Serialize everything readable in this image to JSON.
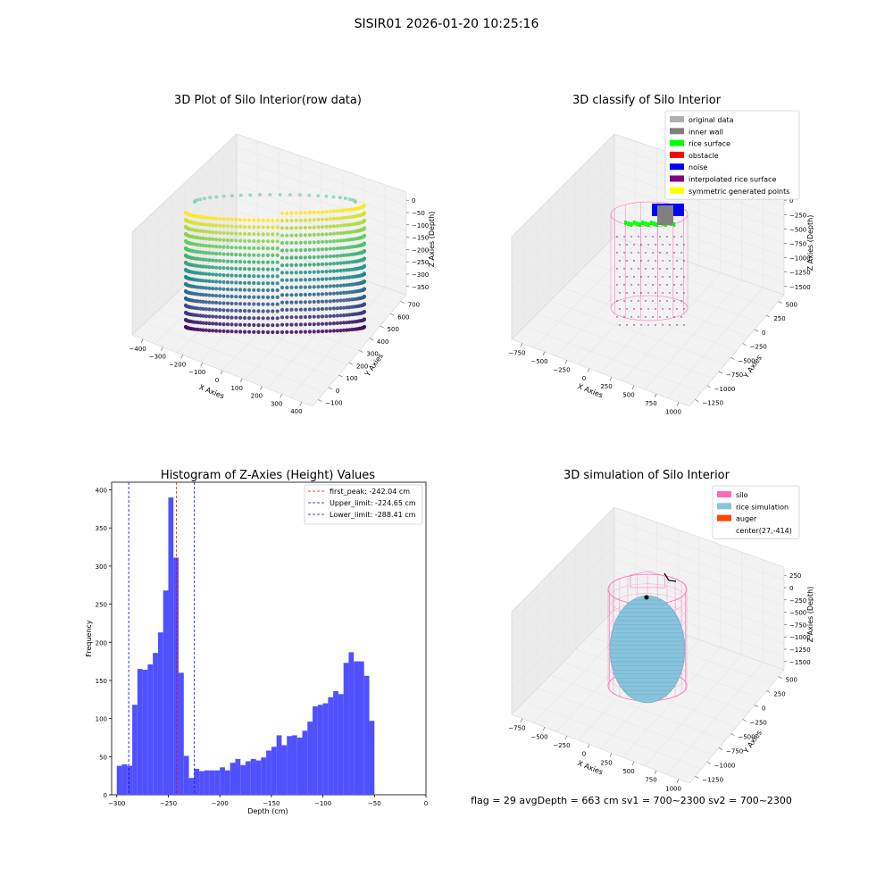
{
  "suptitle": "SISIR01 2026-01-20 10:25:16",
  "footer": "flag = 29  avgDepth = 663 cm  sv1 = 700~2300  sv2 = 700~2300",
  "colors": {
    "hist_bar": "#5050ff",
    "first_peak_line": "#ff0000",
    "limit_line": "#0000ff",
    "silo_pink": "#ff69b4",
    "rice_blue": "#87c4dc",
    "auger_orange": "#ff4500",
    "inner_wall_gray": "#808080",
    "original_gray": "#b0b0b0"
  },
  "chart_data": [
    {
      "type": "scatter3d",
      "title": "3D Plot of Silo Interior(row data)",
      "xlabel": "X Axies",
      "ylabel": "Y Axies",
      "zlabel": "Z Axies (Depth)",
      "xticks": [
        "−400",
        "−300",
        "−200",
        "−100",
        "0",
        "100",
        "200",
        "300",
        "400"
      ],
      "yticks": [
        "−100",
        "0",
        "100",
        "200",
        "300",
        "400",
        "500",
        "600",
        "700"
      ],
      "zticks": [
        "0",
        "−50",
        "−100",
        "−150",
        "−200",
        "−250",
        "−300",
        "−350"
      ],
      "colormap": "viridis"
    },
    {
      "type": "scatter3d",
      "title": "3D classify of Silo Interior",
      "xlabel": "X Axies",
      "ylabel": "Y Axies",
      "zlabel": "Z Axies (Depth)",
      "xticks": [
        "−750",
        "−500",
        "−250",
        "0",
        "250",
        "500",
        "750",
        "1000"
      ],
      "yticks": [
        "−1250",
        "−1000",
        "−750",
        "−500",
        "−250",
        "0",
        "250",
        "500"
      ],
      "zticks": [
        "0",
        "−250",
        "−500",
        "−750",
        "−1000",
        "−1250",
        "−1500"
      ],
      "legend": [
        {
          "label": "original data",
          "color": "#b0b0b0"
        },
        {
          "label": "inner wall",
          "color": "#808080"
        },
        {
          "label": "rice surface",
          "color": "#00ff00"
        },
        {
          "label": "obstacle",
          "color": "#ff0000"
        },
        {
          "label": "noise",
          "color": "#0000ff"
        },
        {
          "label": "interpolated rice surface",
          "color": "#800080"
        },
        {
          "label": "symmetric generated points",
          "color": "#ffff00"
        }
      ]
    },
    {
      "type": "bar",
      "title": "Histogram of Z-Axies (Height) Values",
      "xlabel": "Depth (cm)",
      "ylabel": "Frequency",
      "xlim": [
        -305,
        0
      ],
      "ylim": [
        0,
        410
      ],
      "xticks": [
        "−300",
        "−250",
        "−200",
        "−150",
        "−100",
        "−50",
        "0"
      ],
      "yticks": [
        "0",
        "50",
        "100",
        "150",
        "200",
        "250",
        "300",
        "350",
        "400"
      ],
      "bin_start": -300,
      "bin_width": 5,
      "values": [
        38,
        40,
        38,
        118,
        165,
        164,
        171,
        186,
        213,
        268,
        390,
        311,
        160,
        51,
        22,
        34,
        31,
        32,
        32,
        32,
        36,
        32,
        42,
        47,
        39,
        44,
        47,
        45,
        49,
        58,
        63,
        78,
        65,
        77,
        78,
        75,
        84,
        96,
        116,
        118,
        120,
        128,
        136,
        132,
        173,
        187,
        175,
        175,
        156,
        97
      ],
      "lines": [
        {
          "label": "first_peak: -242.04 cm",
          "x": -242.04,
          "color": "#ff0000"
        },
        {
          "label": "Upper_limit: -224.65 cm",
          "x": -224.65,
          "color": "#0000ff"
        },
        {
          "label": "Lower_limit: -288.41 cm",
          "x": -288.41,
          "color": "#0000ff"
        }
      ],
      "legend_position": "top-right"
    },
    {
      "type": "surface3d",
      "title": "3D simulation of Silo Interior",
      "xlabel": "X Axies",
      "ylabel": "Y Axies",
      "zlabel": "Z Axies (Depth)",
      "xticks": [
        "−750",
        "−500",
        "−250",
        "0",
        "250",
        "500",
        "750",
        "1000"
      ],
      "yticks": [
        "−1250",
        "−1000",
        "−750",
        "−500",
        "−250",
        "0",
        "250",
        "500"
      ],
      "zticks": [
        "250",
        "0",
        "−250",
        "−500",
        "−750",
        "−1000",
        "−1250",
        "−1500"
      ],
      "legend": [
        {
          "label": "silo",
          "color": "#ff69b4"
        },
        {
          "label": "rice simulation",
          "color": "#87c4dc"
        },
        {
          "label": "auger",
          "color": "#ff4500"
        },
        {
          "label": "center(27,-414)",
          "color": ""
        }
      ]
    }
  ]
}
